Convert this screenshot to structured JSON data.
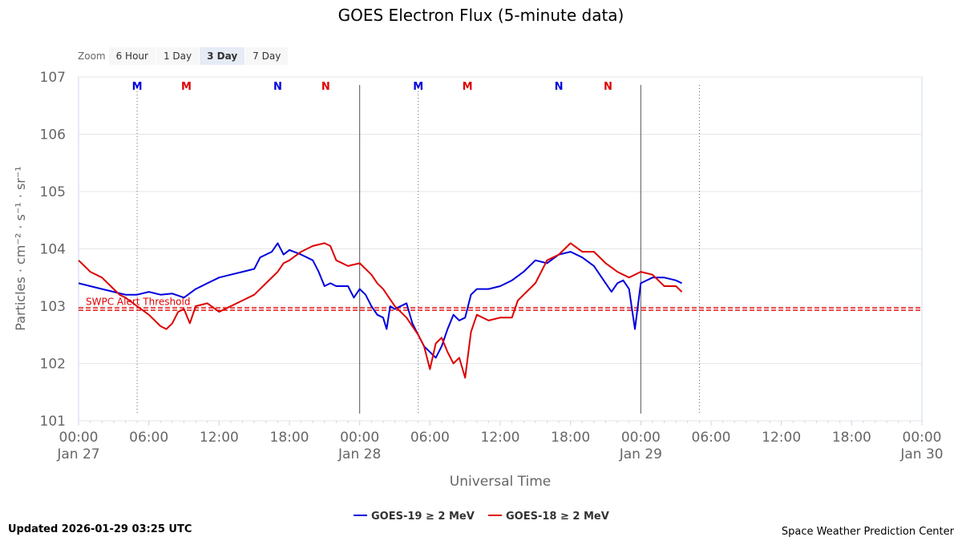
{
  "header": {
    "title": "GOES Electron Flux (5-minute data)"
  },
  "zoom": {
    "label": "Zoom",
    "buttons": [
      "6 Hour",
      "1 Day",
      "3 Day",
      "7 Day"
    ],
    "active": "3 Day"
  },
  "footer": {
    "updated": "Updated 2026-01-29 03:25 UTC",
    "credit": "Space Weather Prediction Center"
  },
  "chart_data": {
    "type": "line",
    "title": "GOES Electron Flux (5-minute data)",
    "xlabel": "Universal Time",
    "ylabel": "Particles · cm⁻² · s⁻¹ · sr⁻¹",
    "y_scale": "log",
    "ylim": [
      101,
      107
    ],
    "x_range_hours": [
      0,
      72
    ],
    "y_ticks": [
      {
        "value": 107,
        "label": "107"
      },
      {
        "value": 106,
        "label": "106"
      },
      {
        "value": 105,
        "label": "105"
      },
      {
        "value": 104,
        "label": "104"
      },
      {
        "value": 103,
        "label": "103"
      },
      {
        "value": 102,
        "label": "102"
      },
      {
        "value": 101,
        "label": "101"
      }
    ],
    "x_ticks": [
      {
        "hour": 0,
        "time": "00:00",
        "date": "Jan 27"
      },
      {
        "hour": 6,
        "time": "06:00",
        "date": ""
      },
      {
        "hour": 12,
        "time": "12:00",
        "date": ""
      },
      {
        "hour": 18,
        "time": "18:00",
        "date": ""
      },
      {
        "hour": 24,
        "time": "00:00",
        "date": "Jan 28"
      },
      {
        "hour": 30,
        "time": "06:00",
        "date": ""
      },
      {
        "hour": 36,
        "time": "12:00",
        "date": ""
      },
      {
        "hour": 42,
        "time": "18:00",
        "date": ""
      },
      {
        "hour": 48,
        "time": "00:00",
        "date": "Jan 29"
      },
      {
        "hour": 54,
        "time": "06:00",
        "date": ""
      },
      {
        "hour": 60,
        "time": "12:00",
        "date": ""
      },
      {
        "hour": 66,
        "time": "18:00",
        "date": ""
      },
      {
        "hour": 72,
        "time": "00:00",
        "date": "Jan 30"
      }
    ],
    "day_lines_hours": [
      24,
      48
    ],
    "dotted_lines_hours": [
      5,
      29,
      53
    ],
    "threshold": {
      "label": "SWPC Alert Threshold",
      "value": 102.95,
      "color": "#dd0000"
    },
    "markers": [
      {
        "hour": 5,
        "label": "M",
        "color": "#0000dd"
      },
      {
        "hour": 9.2,
        "label": "M",
        "color": "#dd0000"
      },
      {
        "hour": 17,
        "label": "N",
        "color": "#0000dd"
      },
      {
        "hour": 21.1,
        "label": "N",
        "color": "#dd0000"
      },
      {
        "hour": 29,
        "label": "M",
        "color": "#0000dd"
      },
      {
        "hour": 33.2,
        "label": "M",
        "color": "#dd0000"
      },
      {
        "hour": 41,
        "label": "N",
        "color": "#0000dd"
      },
      {
        "hour": 45.2,
        "label": "N",
        "color": "#dd0000"
      }
    ],
    "series": [
      {
        "name": "GOES-19 ≥ 2 MeV",
        "color": "#0000dd",
        "points": [
          [
            0,
            103.4
          ],
          [
            1,
            103.35
          ],
          [
            2,
            103.3
          ],
          [
            3,
            103.25
          ],
          [
            4,
            103.2
          ],
          [
            5,
            103.2
          ],
          [
            6,
            103.25
          ],
          [
            7,
            103.2
          ],
          [
            8,
            103.22
          ],
          [
            9,
            103.15
          ],
          [
            10,
            103.3
          ],
          [
            11,
            103.4
          ],
          [
            12,
            103.5
          ],
          [
            13,
            103.55
          ],
          [
            14,
            103.6
          ],
          [
            15,
            103.65
          ],
          [
            15.5,
            103.85
          ],
          [
            16,
            103.9
          ],
          [
            16.5,
            103.95
          ],
          [
            17,
            104.1
          ],
          [
            17.5,
            103.9
          ],
          [
            18,
            103.98
          ],
          [
            19,
            103.9
          ],
          [
            20,
            103.8
          ],
          [
            20.5,
            103.6
          ],
          [
            21,
            103.35
          ],
          [
            21.5,
            103.4
          ],
          [
            22,
            103.35
          ],
          [
            23,
            103.35
          ],
          [
            23.5,
            103.15
          ],
          [
            24,
            103.3
          ],
          [
            24.5,
            103.2
          ],
          [
            25,
            103.0
          ],
          [
            25.5,
            102.85
          ],
          [
            26,
            102.8
          ],
          [
            26.3,
            102.6
          ],
          [
            26.6,
            103.0
          ],
          [
            27,
            102.95
          ],
          [
            28,
            103.05
          ],
          [
            28.5,
            102.7
          ],
          [
            29,
            102.5
          ],
          [
            29.5,
            102.3
          ],
          [
            30,
            102.2
          ],
          [
            30.5,
            102.1
          ],
          [
            31,
            102.3
          ],
          [
            31.5,
            102.6
          ],
          [
            32,
            102.85
          ],
          [
            32.5,
            102.75
          ],
          [
            33,
            102.8
          ],
          [
            33.5,
            103.2
          ],
          [
            34,
            103.3
          ],
          [
            35,
            103.3
          ],
          [
            36,
            103.35
          ],
          [
            37,
            103.45
          ],
          [
            38,
            103.6
          ],
          [
            39,
            103.8
          ],
          [
            40,
            103.75
          ],
          [
            41,
            103.9
          ],
          [
            42,
            103.95
          ],
          [
            43,
            103.85
          ],
          [
            44,
            103.7
          ],
          [
            45,
            103.4
          ],
          [
            45.5,
            103.25
          ],
          [
            46,
            103.4
          ],
          [
            46.5,
            103.45
          ],
          [
            47,
            103.3
          ],
          [
            47.5,
            102.6
          ],
          [
            48,
            103.4
          ],
          [
            49,
            103.5
          ],
          [
            50,
            103.5
          ],
          [
            51,
            103.45
          ],
          [
            51.5,
            103.4
          ]
        ]
      },
      {
        "name": "GOES-18 ≥ 2 MeV",
        "color": "#dd0000",
        "points": [
          [
            0,
            103.8
          ],
          [
            0.5,
            103.7
          ],
          [
            1,
            103.6
          ],
          [
            2,
            103.5
          ],
          [
            3,
            103.3
          ],
          [
            3.5,
            103.2
          ],
          [
            4,
            103.15
          ],
          [
            5,
            103.0
          ],
          [
            6,
            102.85
          ],
          [
            7,
            102.65
          ],
          [
            7.5,
            102.6
          ],
          [
            8,
            102.7
          ],
          [
            8.5,
            102.9
          ],
          [
            9,
            102.95
          ],
          [
            9.5,
            102.7
          ],
          [
            10,
            103.0
          ],
          [
            11,
            103.05
          ],
          [
            12,
            102.9
          ],
          [
            13,
            103.0
          ],
          [
            14,
            103.1
          ],
          [
            15,
            103.2
          ],
          [
            16,
            103.4
          ],
          [
            17,
            103.6
          ],
          [
            17.5,
            103.75
          ],
          [
            18,
            103.8
          ],
          [
            19,
            103.95
          ],
          [
            20,
            104.05
          ],
          [
            21,
            104.1
          ],
          [
            21.5,
            104.05
          ],
          [
            22,
            103.8
          ],
          [
            23,
            103.7
          ],
          [
            24,
            103.75
          ],
          [
            25,
            103.55
          ],
          [
            25.5,
            103.4
          ],
          [
            26,
            103.3
          ],
          [
            27,
            103.0
          ],
          [
            28,
            102.8
          ],
          [
            29,
            102.5
          ],
          [
            29.5,
            102.3
          ],
          [
            30,
            101.9
          ],
          [
            30.5,
            102.35
          ],
          [
            31,
            102.45
          ],
          [
            31.5,
            102.2
          ],
          [
            32,
            102.0
          ],
          [
            32.5,
            102.1
          ],
          [
            33,
            101.75
          ],
          [
            33.5,
            102.55
          ],
          [
            34,
            102.85
          ],
          [
            35,
            102.75
          ],
          [
            36,
            102.8
          ],
          [
            37,
            102.8
          ],
          [
            37.5,
            103.1
          ],
          [
            38,
            103.2
          ],
          [
            39,
            103.4
          ],
          [
            40,
            103.8
          ],
          [
            41,
            103.9
          ],
          [
            42,
            104.1
          ],
          [
            43,
            103.95
          ],
          [
            44,
            103.95
          ],
          [
            45,
            103.75
          ],
          [
            46,
            103.6
          ],
          [
            47,
            103.5
          ],
          [
            48,
            103.6
          ],
          [
            49,
            103.55
          ],
          [
            50,
            103.35
          ],
          [
            51,
            103.35
          ],
          [
            51.5,
            103.25
          ]
        ]
      }
    ],
    "legend_position": "bottom-center",
    "grid": true
  }
}
